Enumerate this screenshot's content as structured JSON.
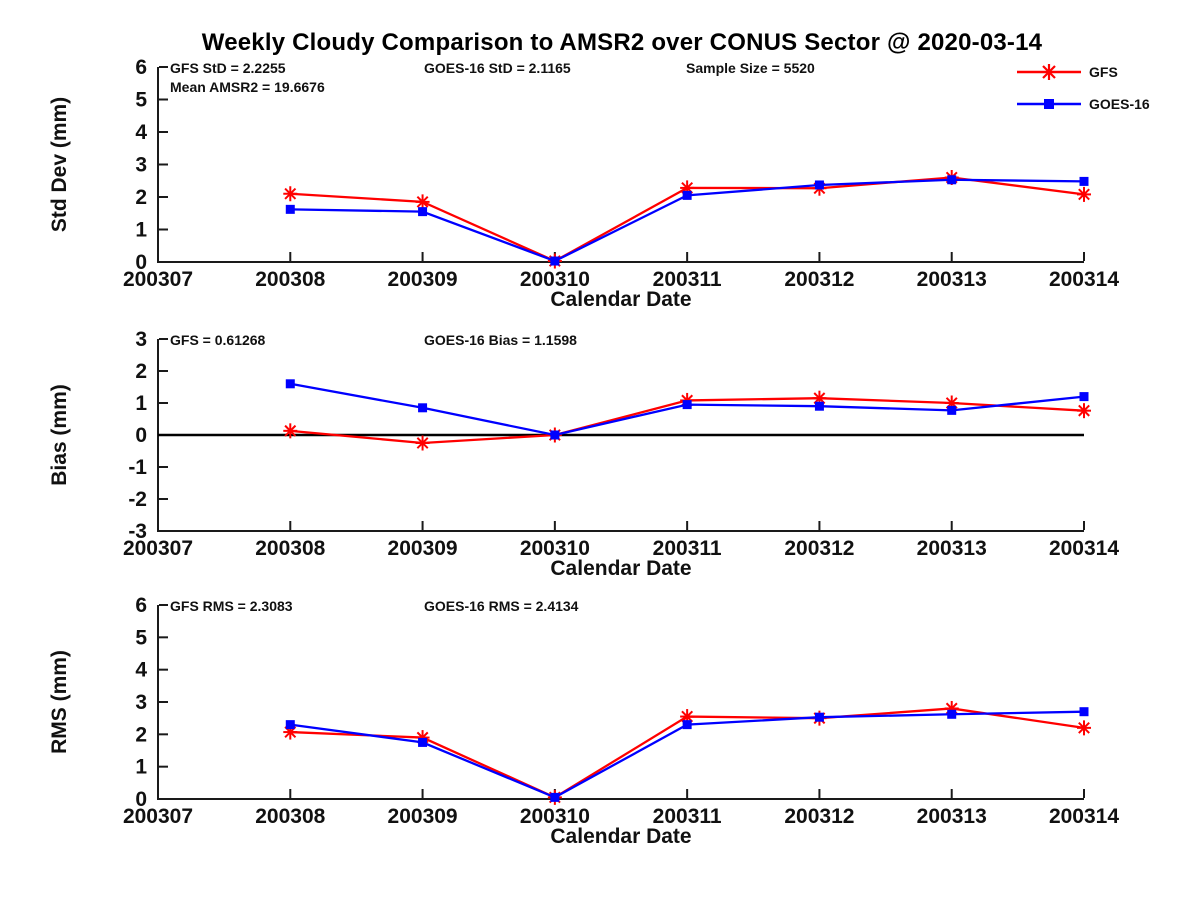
{
  "figure": {
    "title": "Weekly Cloudy Comparison to AMSR2 over CONUS Sector @ 2020-03-14"
  },
  "legend": {
    "position": "top-right",
    "items": [
      {
        "label": "GFS",
        "color": "#ff0000",
        "marker": "asterisk"
      },
      {
        "label": "GOES-16",
        "color": "#0000ff",
        "marker": "square"
      }
    ]
  },
  "colors": {
    "gfs": "#ff0000",
    "goes16": "#0000ff",
    "axis": "#1a1a1a",
    "zero_line": "#000000"
  },
  "chart_data": [
    {
      "type": "line",
      "name": "std-dev",
      "ylabel": "Std Dev (mm)",
      "xlabel": "Calendar Date",
      "ylim": [
        0,
        6
      ],
      "yticks": [
        0,
        1,
        2,
        3,
        4,
        5,
        6
      ],
      "x_ticks": [
        "200307",
        "200308",
        "200309",
        "200310",
        "200311",
        "200312",
        "200313",
        "200314"
      ],
      "zero_line": false,
      "grid": false,
      "annotations": [
        {
          "text": "GFS StD = 2.2255",
          "col": 0,
          "row": 0
        },
        {
          "text": "Mean AMSR2 = 19.6676",
          "col": 0,
          "row": 1
        },
        {
          "text": "GOES-16 StD = 2.1165",
          "col": 1,
          "row": 0
        },
        {
          "text": "Sample Size = 5520",
          "col": 2,
          "row": 0
        }
      ],
      "series": [
        {
          "name": "GFS",
          "color": "#ff0000",
          "marker": "asterisk",
          "x": [
            "200308",
            "200309",
            "200310",
            "200311",
            "200312",
            "200313",
            "200314"
          ],
          "values": [
            2.1,
            1.85,
            0.03,
            2.28,
            2.27,
            2.6,
            2.08
          ]
        },
        {
          "name": "GOES-16",
          "color": "#0000ff",
          "marker": "square",
          "x": [
            "200308",
            "200309",
            "200310",
            "200311",
            "200312",
            "200313",
            "200314"
          ],
          "values": [
            1.62,
            1.55,
            0.03,
            2.05,
            2.37,
            2.53,
            2.48
          ]
        }
      ]
    },
    {
      "type": "line",
      "name": "bias",
      "ylabel": "Bias (mm)",
      "xlabel": "Calendar Date",
      "ylim": [
        -3,
        3
      ],
      "yticks": [
        -3,
        -2,
        -1,
        0,
        1,
        2,
        3
      ],
      "x_ticks": [
        "200307",
        "200308",
        "200309",
        "200310",
        "200311",
        "200312",
        "200313",
        "200314"
      ],
      "zero_line": true,
      "grid": false,
      "annotations": [
        {
          "text": "GFS = 0.61268",
          "col": 0,
          "row": 0
        },
        {
          "text": "GOES-16 Bias  = 1.1598",
          "col": 1,
          "row": 0
        }
      ],
      "series": [
        {
          "name": "GFS",
          "color": "#ff0000",
          "marker": "asterisk",
          "x": [
            "200308",
            "200309",
            "200310",
            "200311",
            "200312",
            "200313",
            "200314"
          ],
          "values": [
            0.13,
            -0.25,
            0.0,
            1.08,
            1.15,
            1.0,
            0.76
          ]
        },
        {
          "name": "GOES-16",
          "color": "#0000ff",
          "marker": "square",
          "x": [
            "200308",
            "200309",
            "200310",
            "200311",
            "200312",
            "200313",
            "200314"
          ],
          "values": [
            1.6,
            0.85,
            0.0,
            0.95,
            0.9,
            0.77,
            1.2
          ]
        }
      ]
    },
    {
      "type": "line",
      "name": "rms",
      "ylabel": "RMS (mm)",
      "xlabel": "Calendar Date",
      "ylim": [
        0,
        6
      ],
      "yticks": [
        0,
        1,
        2,
        3,
        4,
        5,
        6
      ],
      "x_ticks": [
        "200307",
        "200308",
        "200309",
        "200310",
        "200311",
        "200312",
        "200313",
        "200314"
      ],
      "zero_line": false,
      "grid": false,
      "annotations": [
        {
          "text": "GFS RMS = 2.3083",
          "col": 0,
          "row": 0
        },
        {
          "text": "GOES-16 RMS = 2.4134",
          "col": 1,
          "row": 0
        }
      ],
      "series": [
        {
          "name": "GFS",
          "color": "#ff0000",
          "marker": "asterisk",
          "x": [
            "200308",
            "200309",
            "200310",
            "200311",
            "200312",
            "200313",
            "200314"
          ],
          "values": [
            2.07,
            1.9,
            0.05,
            2.55,
            2.5,
            2.8,
            2.2
          ]
        },
        {
          "name": "GOES-16",
          "color": "#0000ff",
          "marker": "square",
          "x": [
            "200308",
            "200309",
            "200310",
            "200311",
            "200312",
            "200313",
            "200314"
          ],
          "values": [
            2.3,
            1.75,
            0.05,
            2.3,
            2.53,
            2.62,
            2.7
          ]
        }
      ]
    }
  ]
}
